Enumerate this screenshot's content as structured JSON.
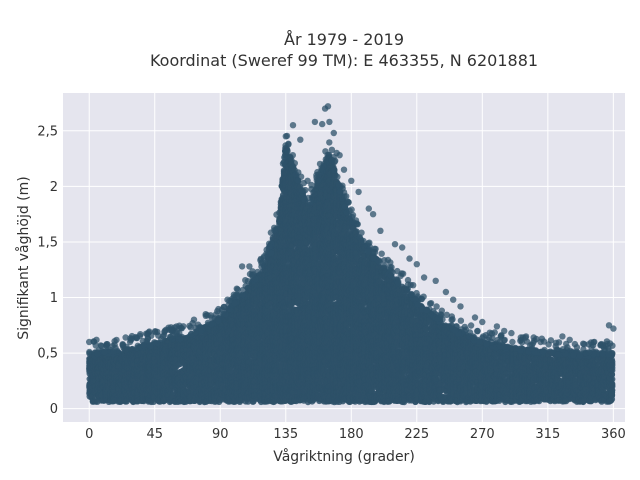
{
  "chart_data": {
    "type": "scatter",
    "title": "År 1979 - 2019",
    "subtitle": "Koordinat (Sweref 99 TM): E 463355, N 6201881",
    "xlabel": "Vågriktning (grader)",
    "ylabel": "Signifikant våghöjd (m)",
    "xlim": [
      -18,
      368
    ],
    "ylim": [
      -0.12,
      2.84
    ],
    "xticks": [
      0,
      45,
      90,
      135,
      180,
      225,
      270,
      315,
      360
    ],
    "xtick_labels": [
      "0",
      "45",
      "90",
      "135",
      "180",
      "225",
      "270",
      "315",
      "360"
    ],
    "yticks": [
      0,
      0.5,
      1,
      1.5,
      2,
      2.5
    ],
    "ytick_labels": [
      "0",
      "0,5",
      "1",
      "1,5",
      "2",
      "2,5"
    ],
    "grid": true,
    "legend": "none",
    "colors": {
      "marker": "#2e5169",
      "plot_bg": "#e5e5ee",
      "grid": "#ffffff"
    },
    "envelope": {
      "x": [
        0,
        20,
        45,
        70,
        90,
        105,
        120,
        130,
        135,
        140,
        150,
        160,
        165,
        175,
        185,
        200,
        215,
        230,
        250,
        270,
        290,
        315,
        340,
        360
      ],
      "y_min": [
        0.06,
        0.06,
        0.06,
        0.06,
        0.06,
        0.06,
        0.06,
        0.06,
        0.06,
        0.06,
        0.06,
        0.06,
        0.06,
        0.06,
        0.06,
        0.06,
        0.06,
        0.06,
        0.06,
        0.06,
        0.06,
        0.06,
        0.06,
        0.06
      ],
      "y_max": [
        0.5,
        0.52,
        0.6,
        0.66,
        0.82,
        1.02,
        1.28,
        1.7,
        2.38,
        2.2,
        1.82,
        2.15,
        2.3,
        1.85,
        1.55,
        1.3,
        1.12,
        0.9,
        0.72,
        0.6,
        0.55,
        0.52,
        0.5,
        0.5
      ]
    },
    "outliers": [
      [
        0,
        0.6
      ],
      [
        5,
        0.62
      ],
      [
        12,
        0.58
      ],
      [
        25,
        0.64
      ],
      [
        40,
        0.67
      ],
      [
        52,
        0.7
      ],
      [
        60,
        0.74
      ],
      [
        72,
        0.8
      ],
      [
        80,
        0.85
      ],
      [
        95,
        0.98
      ],
      [
        100,
        0.95
      ],
      [
        105,
        1.28
      ],
      [
        110,
        1.28
      ],
      [
        125,
        1.4
      ],
      [
        135,
        2.45
      ],
      [
        140,
        2.55
      ],
      [
        145,
        2.42
      ],
      [
        150,
        2.05
      ],
      [
        155,
        2.58
      ],
      [
        160,
        2.56
      ],
      [
        162,
        2.7
      ],
      [
        164,
        2.72
      ],
      [
        165,
        2.58
      ],
      [
        168,
        2.48
      ],
      [
        170,
        2.3
      ],
      [
        172,
        2.28
      ],
      [
        175,
        2.15
      ],
      [
        180,
        2.05
      ],
      [
        185,
        1.95
      ],
      [
        192,
        1.8
      ],
      [
        195,
        1.75
      ],
      [
        200,
        1.6
      ],
      [
        210,
        1.48
      ],
      [
        215,
        1.45
      ],
      [
        220,
        1.35
      ],
      [
        225,
        1.3
      ],
      [
        230,
        1.18
      ],
      [
        238,
        1.15
      ],
      [
        245,
        1.05
      ],
      [
        250,
        0.98
      ],
      [
        255,
        0.92
      ],
      [
        265,
        0.82
      ],
      [
        270,
        0.78
      ],
      [
        280,
        0.74
      ],
      [
        285,
        0.7
      ],
      [
        290,
        0.68
      ],
      [
        300,
        0.65
      ],
      [
        310,
        0.6
      ],
      [
        325,
        0.65
      ],
      [
        330,
        0.62
      ],
      [
        340,
        0.58
      ],
      [
        345,
        0.55
      ],
      [
        357,
        0.75
      ],
      [
        360,
        0.72
      ]
    ]
  }
}
